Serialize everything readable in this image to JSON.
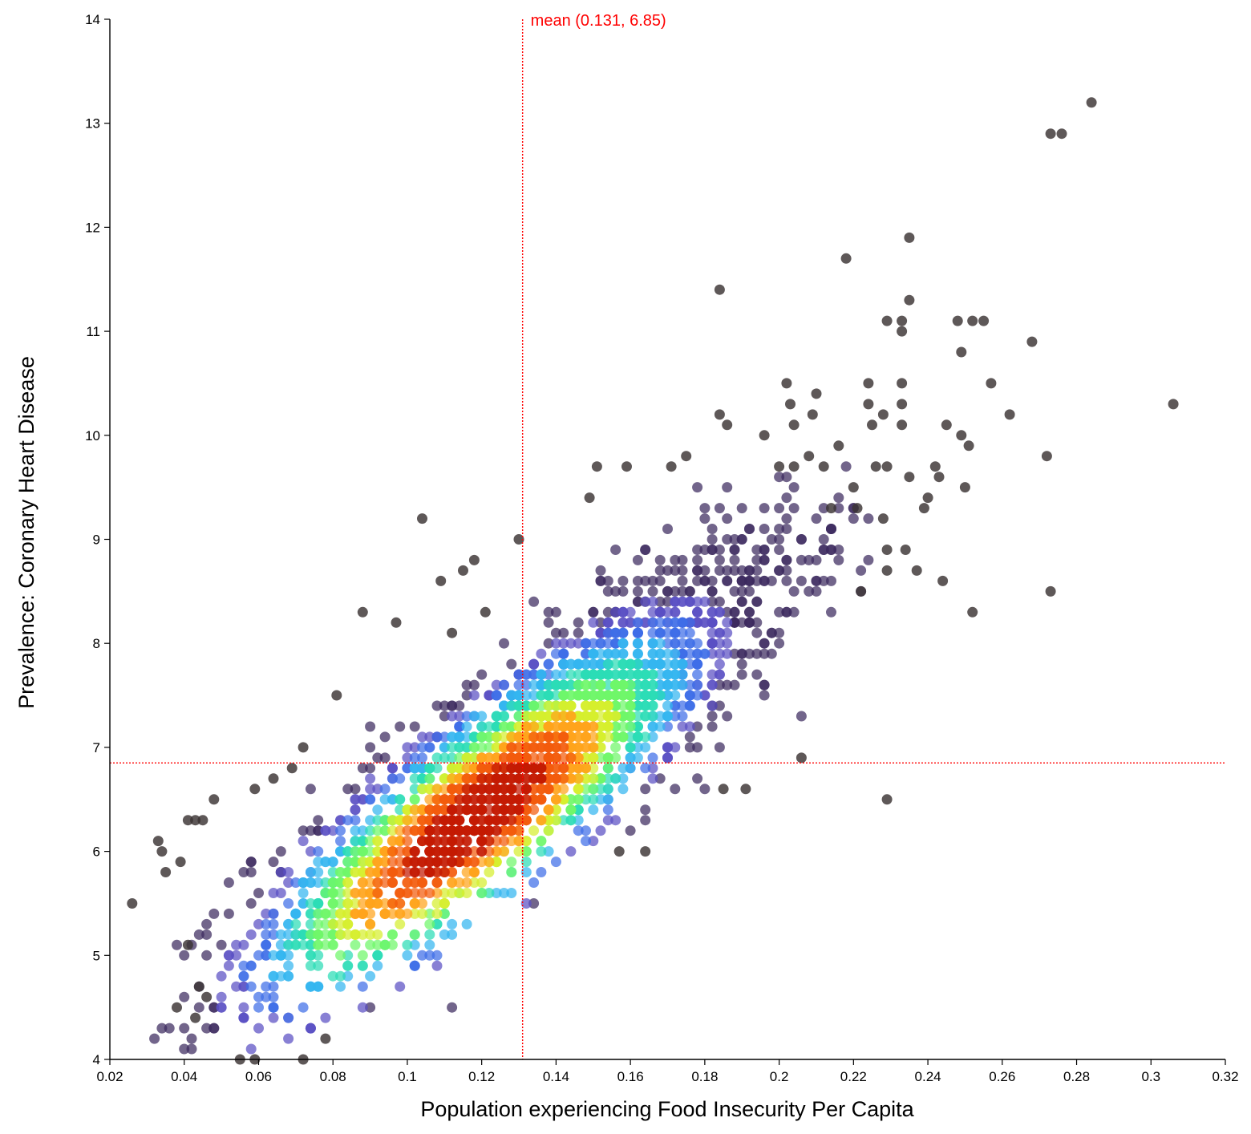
{
  "chart_data": {
    "type": "scatter",
    "xlabel": "Population experiencing Food Insecurity Per Capita",
    "ylabel": "Prevalence: Coronary Heart Disease",
    "xlim": [
      0.02,
      0.32
    ],
    "ylim": [
      4,
      14
    ],
    "x_ticks": [
      "0.02",
      "0.04",
      "0.06",
      "0.08",
      "0.1",
      "0.12",
      "0.14",
      "0.16",
      "0.18",
      "0.2",
      "0.22",
      "0.24",
      "0.26",
      "0.28",
      "0.3",
      "0.32"
    ],
    "y_ticks": [
      "4",
      "5",
      "6",
      "7",
      "8",
      "9",
      "10",
      "11",
      "12",
      "13",
      "14"
    ],
    "grid": false,
    "color_encoding": "point density (turbo colormap, dark grey for sparse outliers)",
    "mean": {
      "x": 0.131,
      "y": 6.85,
      "label": "mean (0.131, 6.85)",
      "color": "#ff0000"
    },
    "density_bands": [
      {
        "color": "#8b0000",
        "level": 1.0
      },
      {
        "color": "#c41a03",
        "level": 0.85
      },
      {
        "color": "#f25c0c",
        "level": 0.72
      },
      {
        "color": "#ffa41c",
        "level": 0.6
      },
      {
        "color": "#d6ef2e",
        "level": 0.5
      },
      {
        "color": "#6ff76a",
        "level": 0.4
      },
      {
        "color": "#2bdcb6",
        "level": 0.3
      },
      {
        "color": "#33b6f0",
        "level": 0.22
      },
      {
        "color": "#3f6ee8",
        "level": 0.15
      },
      {
        "color": "#5a4fc4",
        "level": 0.09
      },
      {
        "color": "#3c2a5e",
        "level": 0.0
      }
    ],
    "outliers": [
      [
        0.026,
        5.5
      ],
      [
        0.033,
        6.1
      ],
      [
        0.034,
        6.0
      ],
      [
        0.035,
        5.8
      ],
      [
        0.038,
        4.5
      ],
      [
        0.039,
        5.9
      ],
      [
        0.041,
        6.3
      ],
      [
        0.041,
        5.1
      ],
      [
        0.043,
        6.3
      ],
      [
        0.043,
        4.4
      ],
      [
        0.045,
        6.3
      ],
      [
        0.048,
        6.5
      ],
      [
        0.046,
        4.6
      ],
      [
        0.044,
        4.7
      ],
      [
        0.055,
        4.0
      ],
      [
        0.059,
        4.0
      ],
      [
        0.059,
        6.6
      ],
      [
        0.064,
        6.7
      ],
      [
        0.069,
        6.8
      ],
      [
        0.072,
        7.0
      ],
      [
        0.072,
        4.0
      ],
      [
        0.078,
        4.2
      ],
      [
        0.081,
        7.5
      ],
      [
        0.088,
        8.3
      ],
      [
        0.097,
        8.2
      ],
      [
        0.104,
        9.2
      ],
      [
        0.109,
        8.6
      ],
      [
        0.112,
        8.1
      ],
      [
        0.115,
        8.7
      ],
      [
        0.118,
        8.8
      ],
      [
        0.121,
        8.3
      ],
      [
        0.13,
        9.0
      ],
      [
        0.157,
        6.0
      ],
      [
        0.164,
        6.0
      ],
      [
        0.149,
        9.4
      ],
      [
        0.151,
        9.7
      ],
      [
        0.159,
        9.7
      ],
      [
        0.171,
        9.7
      ],
      [
        0.175,
        9.8
      ],
      [
        0.184,
        10.2
      ],
      [
        0.186,
        10.1
      ],
      [
        0.184,
        11.4
      ],
      [
        0.185,
        6.6
      ],
      [
        0.191,
        6.6
      ],
      [
        0.196,
        10.0
      ],
      [
        0.2,
        9.7
      ],
      [
        0.202,
        10.5
      ],
      [
        0.203,
        10.3
      ],
      [
        0.204,
        9.7
      ],
      [
        0.204,
        10.1
      ],
      [
        0.206,
        6.9
      ],
      [
        0.208,
        9.8
      ],
      [
        0.209,
        10.2
      ],
      [
        0.21,
        10.4
      ],
      [
        0.212,
        9.7
      ],
      [
        0.214,
        9.3
      ],
      [
        0.216,
        9.9
      ],
      [
        0.218,
        11.7
      ],
      [
        0.22,
        9.5
      ],
      [
        0.221,
        9.3
      ],
      [
        0.222,
        8.5
      ],
      [
        0.224,
        10.5
      ],
      [
        0.224,
        10.3
      ],
      [
        0.225,
        10.1
      ],
      [
        0.226,
        9.7
      ],
      [
        0.228,
        10.2
      ],
      [
        0.228,
        9.2
      ],
      [
        0.229,
        8.9
      ],
      [
        0.229,
        9.7
      ],
      [
        0.229,
        8.7
      ],
      [
        0.229,
        6.5
      ],
      [
        0.229,
        11.1
      ],
      [
        0.233,
        11.1
      ],
      [
        0.233,
        10.5
      ],
      [
        0.233,
        11.0
      ],
      [
        0.233,
        10.3
      ],
      [
        0.233,
        10.1
      ],
      [
        0.234,
        8.9
      ],
      [
        0.235,
        11.3
      ],
      [
        0.235,
        11.9
      ],
      [
        0.235,
        9.6
      ],
      [
        0.237,
        8.7
      ],
      [
        0.239,
        9.3
      ],
      [
        0.24,
        9.4
      ],
      [
        0.242,
        9.7
      ],
      [
        0.243,
        9.6
      ],
      [
        0.244,
        8.6
      ],
      [
        0.245,
        10.1
      ],
      [
        0.248,
        11.1
      ],
      [
        0.249,
        10.8
      ],
      [
        0.249,
        10.0
      ],
      [
        0.25,
        9.5
      ],
      [
        0.251,
        9.9
      ],
      [
        0.252,
        11.1
      ],
      [
        0.252,
        8.3
      ],
      [
        0.255,
        11.1
      ],
      [
        0.257,
        10.5
      ],
      [
        0.262,
        10.2
      ],
      [
        0.268,
        10.9
      ],
      [
        0.272,
        9.8
      ],
      [
        0.273,
        12.9
      ],
      [
        0.273,
        8.5
      ],
      [
        0.276,
        12.9
      ],
      [
        0.284,
        13.2
      ],
      [
        0.306,
        10.3
      ]
    ]
  }
}
